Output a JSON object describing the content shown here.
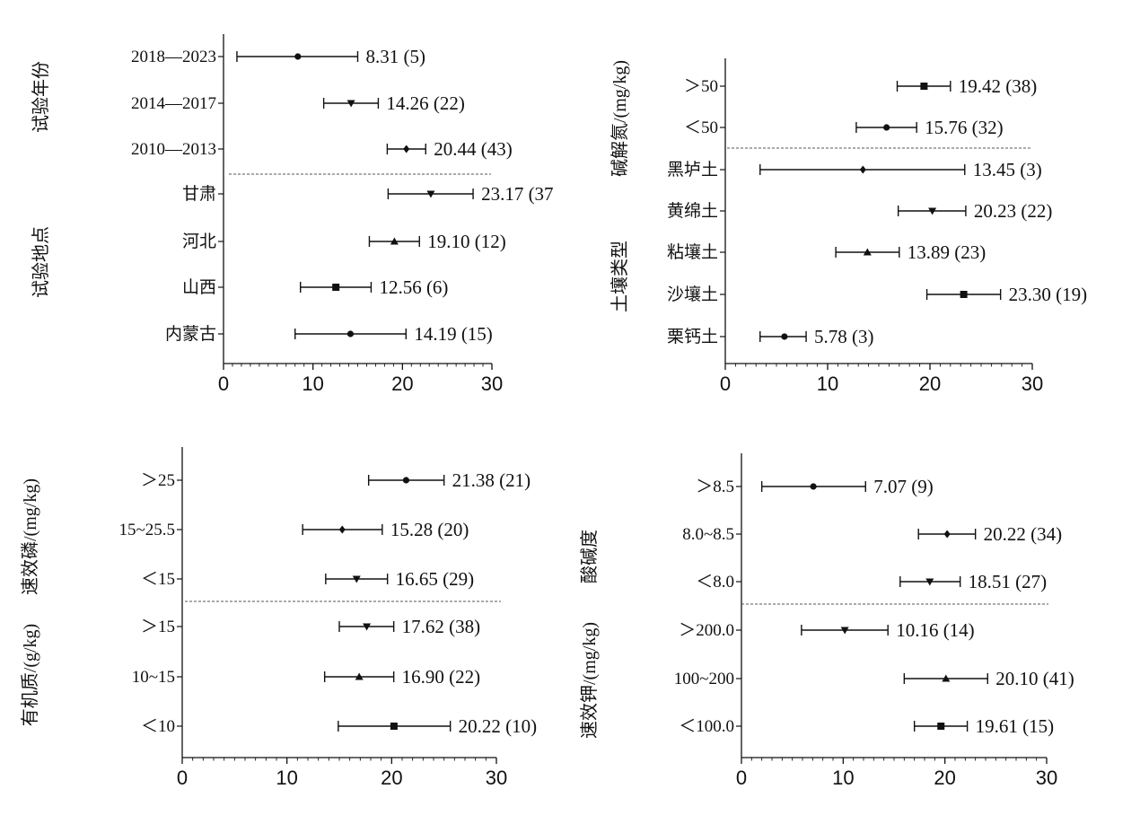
{
  "chart_data": [
    {
      "type": "forest",
      "xlim": [
        0,
        30
      ],
      "xticks": [
        0,
        10,
        20,
        30
      ],
      "groups": [
        {
          "label": "试验年份",
          "rows": [
            {
              "label": "2018—2023",
              "value": 8.31,
              "low": 1.5,
              "high": 15.0,
              "n": 5,
              "text": "8.31 (5)",
              "marker": "circle"
            },
            {
              "label": "2014—2017",
              "value": 14.26,
              "low": 11.2,
              "high": 17.3,
              "n": 22,
              "text": "14.26 (22)",
              "marker": "triangle-down"
            },
            {
              "label": "2010—2013",
              "value": 20.44,
              "low": 18.3,
              "high": 22.6,
              "n": 43,
              "text": "20.44 (43)",
              "marker": "diamond"
            }
          ]
        },
        {
          "label": "试验地点",
          "rows": [
            {
              "label": "甘肃",
              "value": 23.17,
              "low": 18.4,
              "high": 27.9,
              "n": 37,
              "text": "23.17 (37",
              "marker": "triangle-down"
            },
            {
              "label": "河北",
              "value": 19.1,
              "low": 16.3,
              "high": 21.9,
              "n": 12,
              "text": "19.10 (12)",
              "marker": "triangle-up"
            },
            {
              "label": "山西",
              "value": 12.56,
              "low": 8.6,
              "high": 16.5,
              "n": 6,
              "text": "12.56 (6)",
              "marker": "square"
            },
            {
              "label": "内蒙古",
              "value": 14.19,
              "low": 8.0,
              "high": 20.4,
              "n": 15,
              "text": "14.19 (15)",
              "marker": "circle"
            }
          ]
        }
      ]
    },
    {
      "type": "forest",
      "xlim": [
        0,
        30
      ],
      "xticks": [
        0,
        10,
        20,
        30
      ],
      "groups": [
        {
          "label": "碱解氮/(mg/kg)",
          "rows": [
            {
              "label": ">50",
              "value": 19.42,
              "low": 16.8,
              "high": 22.0,
              "n": 38,
              "text": "19.42 (38)",
              "marker": "square"
            },
            {
              "label": "<50",
              "value": 15.76,
              "low": 12.8,
              "high": 18.7,
              "n": 32,
              "text": "15.76 (32)",
              "marker": "circle"
            }
          ]
        },
        {
          "label": "土壤类型",
          "rows": [
            {
              "label": "黑垆土",
              "value": 13.45,
              "low": 3.4,
              "high": 23.4,
              "n": 3,
              "text": "13.45 (3)",
              "marker": "diamond"
            },
            {
              "label": "黄绵土",
              "value": 20.23,
              "low": 16.9,
              "high": 23.5,
              "n": 22,
              "text": "20.23 (22)",
              "marker": "triangle-down"
            },
            {
              "label": "粘壤土",
              "value": 13.89,
              "low": 10.8,
              "high": 17.0,
              "n": 23,
              "text": "13.89 (23)",
              "marker": "triangle-up"
            },
            {
              "label": "沙壤土",
              "value": 23.3,
              "low": 19.7,
              "high": 26.9,
              "n": 19,
              "text": "23.30 (19)",
              "marker": "square"
            },
            {
              "label": "栗钙土",
              "value": 5.78,
              "low": 3.4,
              "high": 7.9,
              "n": 3,
              "text": "5.78 (3)",
              "marker": "circle"
            }
          ]
        }
      ]
    },
    {
      "type": "forest",
      "xlim": [
        0,
        30
      ],
      "xticks": [
        0,
        10,
        20,
        30
      ],
      "groups": [
        {
          "label": "速效磷/(mg/kg)",
          "rows": [
            {
              "label": ">25",
              "value": 21.38,
              "low": 17.8,
              "high": 25.0,
              "n": 21,
              "text": "21.38 (21)",
              "marker": "circle"
            },
            {
              "label": "15~25.5",
              "value": 15.28,
              "low": 11.5,
              "high": 19.1,
              "n": 20,
              "text": "15.28 (20)",
              "marker": "diamond"
            },
            {
              "label": "<15",
              "value": 16.65,
              "low": 13.7,
              "high": 19.6,
              "n": 29,
              "text": "16.65 (29)",
              "marker": "triangle-down"
            }
          ]
        },
        {
          "label": "有机质/(g/kg)",
          "rows": [
            {
              "label": ">15",
              "value": 17.62,
              "low": 15.0,
              "high": 20.2,
              "n": 38,
              "text": "17.62 (38)",
              "marker": "triangle-down"
            },
            {
              "label": "10~15",
              "value": 16.9,
              "low": 13.6,
              "high": 20.2,
              "n": 22,
              "text": "16.90 (22)",
              "marker": "triangle-up"
            },
            {
              "label": "<10",
              "value": 20.22,
              "low": 14.9,
              "high": 25.6,
              "n": 10,
              "text": "20.22 (10)",
              "marker": "square"
            }
          ]
        }
      ]
    },
    {
      "type": "forest",
      "xlim": [
        0,
        30
      ],
      "xticks": [
        0,
        10,
        20,
        30
      ],
      "groups": [
        {
          "label": "酸碱度",
          "rows": [
            {
              "label": ">8.5",
              "value": 7.07,
              "low": 2.0,
              "high": 12.2,
              "n": 9,
              "text": "7.07 (9)",
              "marker": "circle"
            },
            {
              "label": "8.0~8.5",
              "value": 20.22,
              "low": 17.4,
              "high": 23.0,
              "n": 34,
              "text": "20.22 (34)",
              "marker": "diamond"
            },
            {
              "label": "<8.0",
              "value": 18.51,
              "low": 15.6,
              "high": 21.5,
              "n": 27,
              "text": "18.51 (27)",
              "marker": "triangle-down"
            }
          ]
        },
        {
          "label": "速效钾/(mg/kg)",
          "rows": [
            {
              "label": ">200.0",
              "value": 10.16,
              "low": 5.9,
              "high": 14.4,
              "n": 14,
              "text": "10.16 (14)",
              "marker": "triangle-down"
            },
            {
              "label": "100~200",
              "value": 20.1,
              "low": 16.0,
              "high": 24.2,
              "n": 41,
              "text": "20.10 (41)",
              "marker": "triangle-up"
            },
            {
              "label": "<100.0",
              "value": 19.61,
              "low": 17.0,
              "high": 22.2,
              "n": 15,
              "text": "19.61 (15)",
              "marker": "square"
            }
          ]
        }
      ]
    }
  ]
}
